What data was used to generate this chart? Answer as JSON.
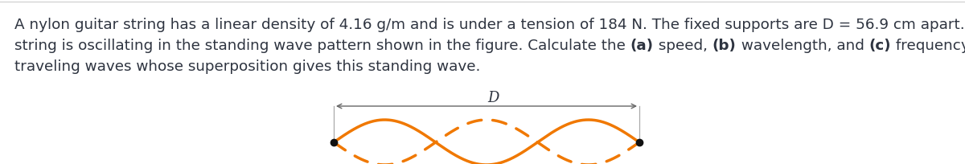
{
  "text_line1": "A nylon guitar string has a linear density of 4.16 g/m and is under a tension of 184 N. The fixed supports are D = 56.9 cm apart. The",
  "text_line2_parts": [
    [
      "string is oscillating in the standing wave pattern shown in the figure. Calculate the ",
      false
    ],
    [
      "(a)",
      true
    ],
    [
      " speed, ",
      false
    ],
    [
      "(b)",
      true
    ],
    [
      " wavelength, and ",
      false
    ],
    [
      "(c)",
      true
    ],
    [
      " frequency of the",
      false
    ]
  ],
  "text_line3": "traveling waves whose superposition gives this standing wave.",
  "text_color": "#2e3440",
  "background_color": "#ffffff",
  "wave_color": "#f07800",
  "wave_amplitude": 0.38,
  "wave_loops": 3,
  "arrow_label": "D",
  "font_size_text": 13.2,
  "font_size_label": 13,
  "fig_width": 12.0,
  "fig_height": 2.05
}
